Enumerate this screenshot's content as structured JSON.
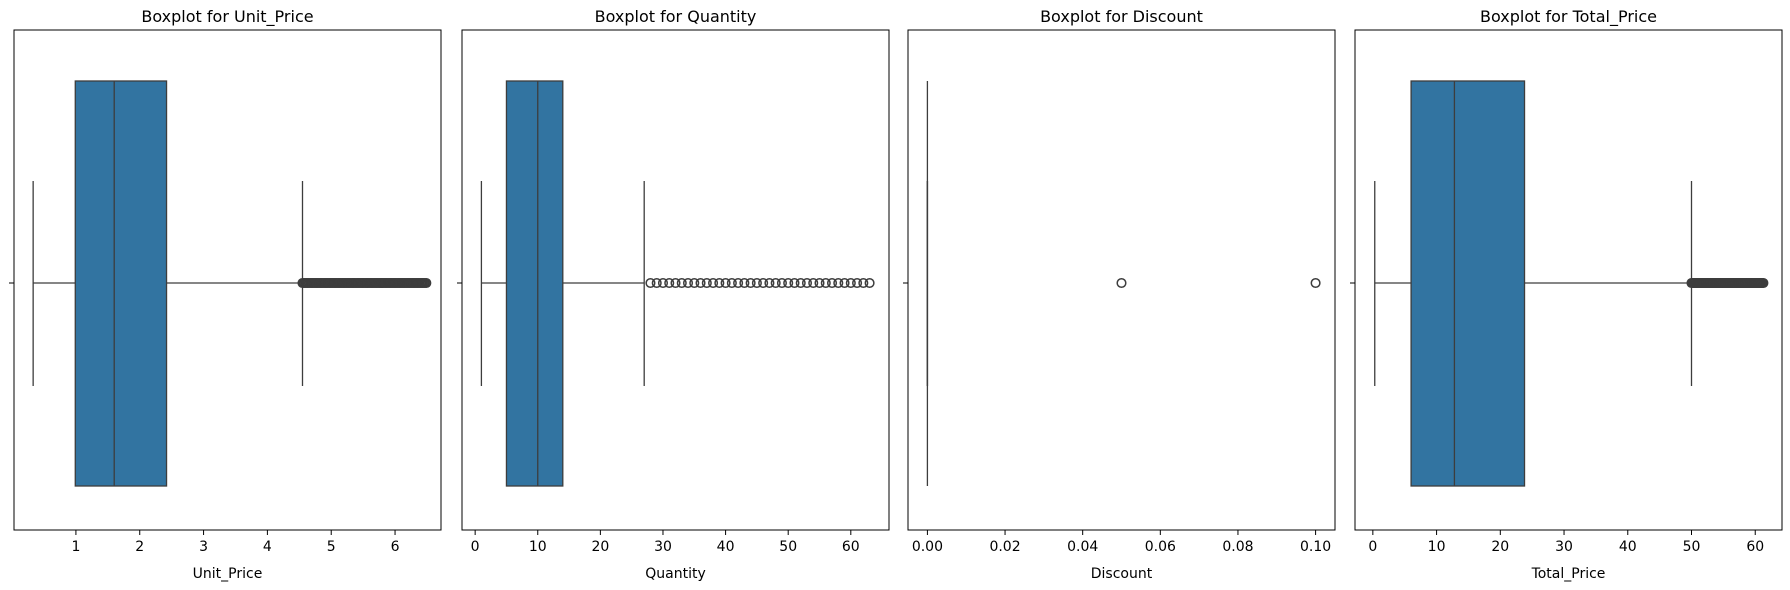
{
  "colors": {
    "box": "#3274a1",
    "line": "#3d3d3d",
    "frame": "#000000"
  },
  "chart_data": [
    {
      "type": "boxplot",
      "title": "Boxplot for Unit_Price",
      "xlabel": "Unit_Price",
      "xlim": [
        0.03,
        6.72
      ],
      "ticks": [
        1,
        2,
        3,
        4,
        5,
        6
      ],
      "tick_labels": [
        "1",
        "2",
        "3",
        "4",
        "5",
        "6"
      ],
      "stats": {
        "whisker_low": 0.33,
        "q1": 0.99,
        "median": 1.6,
        "q3": 2.42,
        "whisker_high": 4.55
      },
      "outliers": {
        "from": 4.55,
        "to": 6.5,
        "step": 0.02
      }
    },
    {
      "type": "boxplot",
      "title": "Boxplot for Quantity",
      "xlabel": "Quantity",
      "xlim": [
        -2.1,
        66.1
      ],
      "ticks": [
        0,
        10,
        20,
        30,
        40,
        50,
        60
      ],
      "tick_labels": [
        "0",
        "10",
        "20",
        "30",
        "40",
        "50",
        "60"
      ],
      "stats": {
        "whisker_low": 1,
        "q1": 5,
        "median": 10,
        "q3": 14,
        "whisker_high": 27
      },
      "outliers": {
        "from": 28,
        "to": 63,
        "step": 1
      }
    },
    {
      "type": "boxplot",
      "title": "Boxplot for Discount",
      "xlabel": "Discount",
      "xlim": [
        -0.005,
        0.105
      ],
      "ticks": [
        0,
        0.02,
        0.04,
        0.06,
        0.08,
        0.1
      ],
      "tick_labels": [
        "0.00",
        "0.02",
        "0.04",
        "0.06",
        "0.08",
        "0.10"
      ],
      "stats": {
        "whisker_low": 0,
        "q1": 0,
        "median": 0,
        "q3": 0,
        "whisker_high": 0
      },
      "outliers": {
        "values": [
          0.05,
          0.1
        ]
      }
    },
    {
      "type": "boxplot",
      "title": "Boxplot for Total_Price",
      "xlabel": "Total_Price",
      "xlim": [
        -2.8,
        64.2
      ],
      "ticks": [
        0,
        10,
        20,
        30,
        40,
        50,
        60
      ],
      "tick_labels": [
        "0",
        "10",
        "20",
        "30",
        "40",
        "50",
        "60"
      ],
      "stats": {
        "whisker_low": 0.3,
        "q1": 6,
        "median": 12.8,
        "q3": 23.8,
        "whisker_high": 50
      },
      "outliers": {
        "from": 50,
        "to": 61.3,
        "step": 0.12
      }
    }
  ]
}
